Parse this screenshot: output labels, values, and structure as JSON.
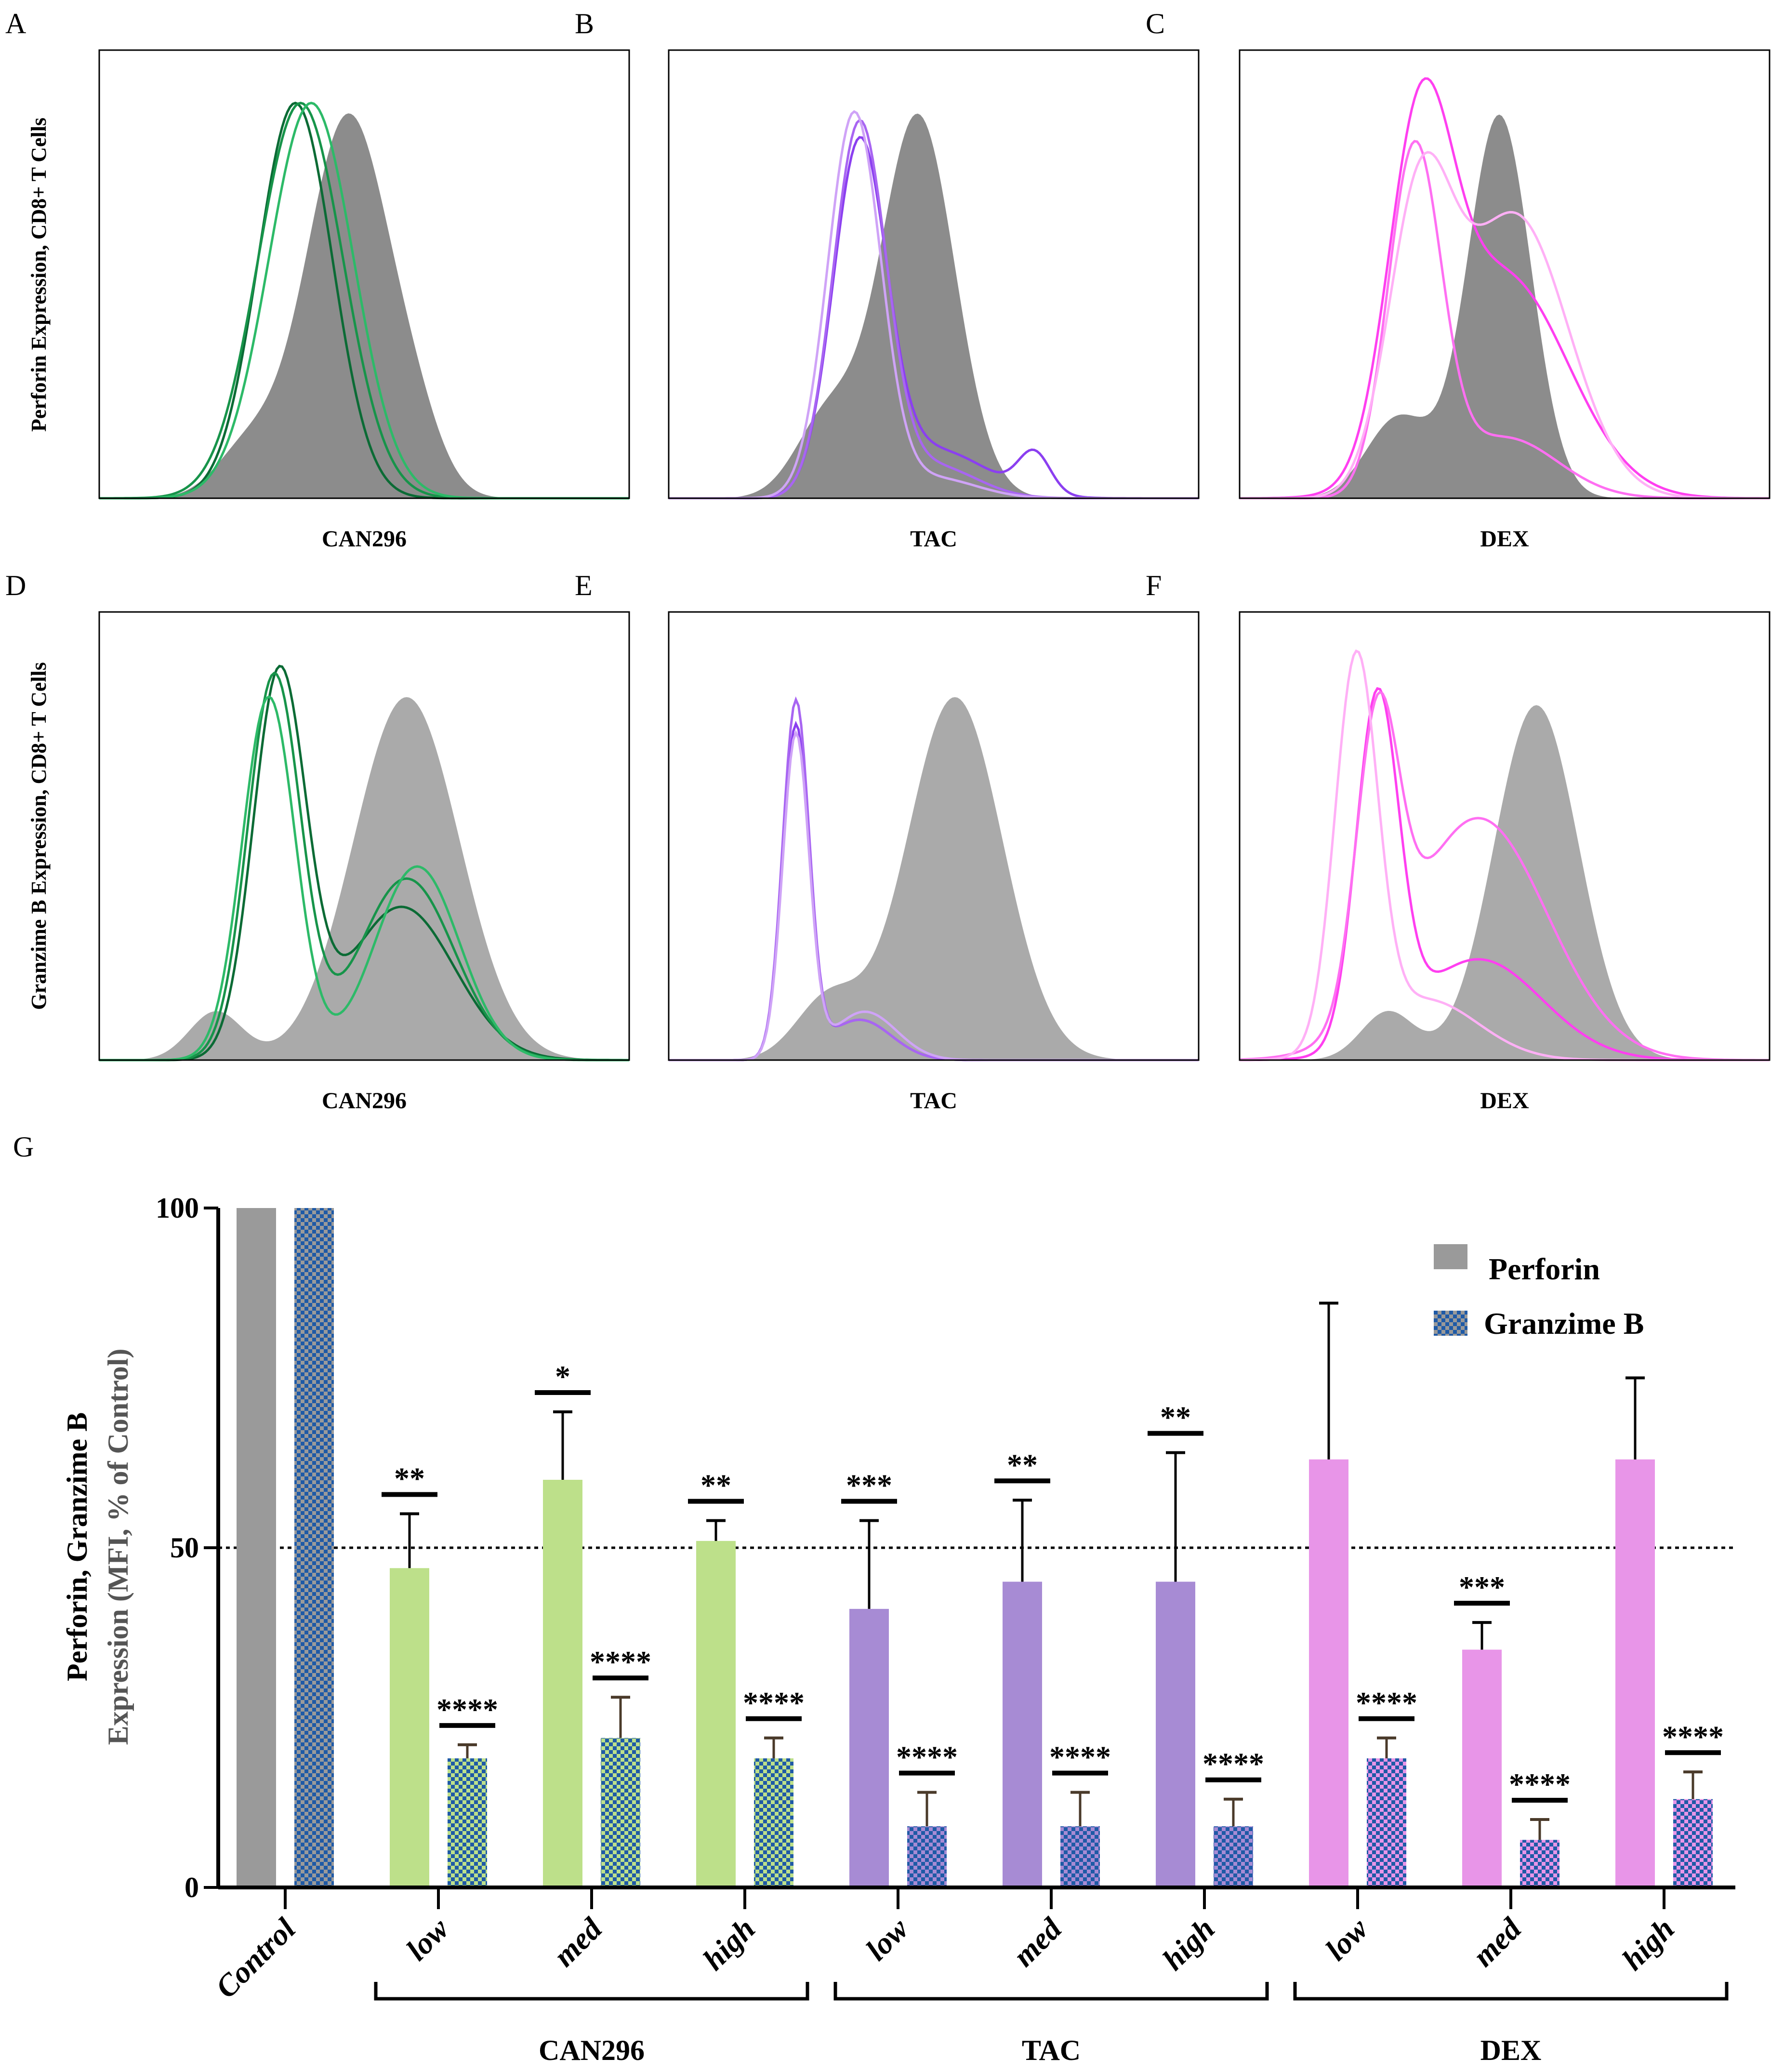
{
  "histograms": {
    "row1_ylabel": "Perforin Expression, CD8+ T Cells",
    "row2_ylabel": "Granzime B Expression, CD8+ T Cells",
    "panels": [
      {
        "letter": "A",
        "xlabel": "CAN296",
        "line_colors": [
          "#0b6b35",
          "#17944a",
          "#2dba68"
        ]
      },
      {
        "letter": "B",
        "xlabel": "TAC",
        "line_colors": [
          "#8b3ff0",
          "#a865f2",
          "#cfa3f7"
        ]
      },
      {
        "letter": "C",
        "xlabel": "DEX",
        "line_colors": [
          "#ff3ff0",
          "#ff6ff2",
          "#ffb0f6"
        ]
      },
      {
        "letter": "D",
        "xlabel": "CAN296",
        "line_colors": [
          "#0b6b35",
          "#17944a",
          "#2dba68"
        ]
      },
      {
        "letter": "E",
        "xlabel": "TAC",
        "line_colors": [
          "#8b3ff0",
          "#a865f2",
          "#cfa3f7"
        ]
      },
      {
        "letter": "F",
        "xlabel": "DEX",
        "line_colors": [
          "#ff3ff0",
          "#ff6ff2",
          "#ffb0f6"
        ]
      }
    ],
    "control_fill": "#8c8c8c"
  },
  "chart_data": {
    "panel_letter": "G",
    "type": "bar",
    "ylabel_line1": "Perforin, Granzime B",
    "ylabel_line2": "Expression (MFI, % of Control)",
    "ylim": [
      0,
      100
    ],
    "yticks": [
      "0",
      "50",
      "100"
    ],
    "reference_line": 50,
    "categories": [
      "Control",
      "low",
      "med",
      "high",
      "low",
      "med",
      "high",
      "low",
      "med",
      "high"
    ],
    "groups": [
      {
        "label": "CAN296",
        "from": 1,
        "to": 3,
        "color": "#bde08a"
      },
      {
        "label": "TAC",
        "from": 4,
        "to": 6,
        "color": "#a78bd4"
      },
      {
        "label": "DEX",
        "from": 7,
        "to": 9,
        "color": "#e895e8"
      }
    ],
    "control_color": "#9a9a9a",
    "checker_color": "#1f5aa6",
    "legend": [
      "Perforin",
      "Granzime B"
    ],
    "legend_position": "top-right",
    "series": [
      {
        "name": "Perforin",
        "values": [
          100,
          47,
          60,
          51,
          41,
          45,
          45,
          63,
          35,
          63
        ],
        "error_upper": [
          null,
          55,
          70,
          54,
          54,
          57,
          64,
          86,
          39,
          75
        ],
        "significance": [
          "",
          "**",
          "*",
          "**",
          "***",
          "**",
          "**",
          "",
          "***",
          ""
        ]
      },
      {
        "name": "Granzime B",
        "values": [
          100,
          19,
          22,
          19,
          9,
          9,
          9,
          19,
          7,
          13
        ],
        "error_upper": [
          null,
          21,
          28,
          22,
          14,
          14,
          13,
          22,
          10,
          17
        ],
        "significance": [
          "",
          "****",
          "****",
          "****",
          "****",
          "****",
          "****",
          "****",
          "****",
          "****"
        ]
      }
    ]
  }
}
